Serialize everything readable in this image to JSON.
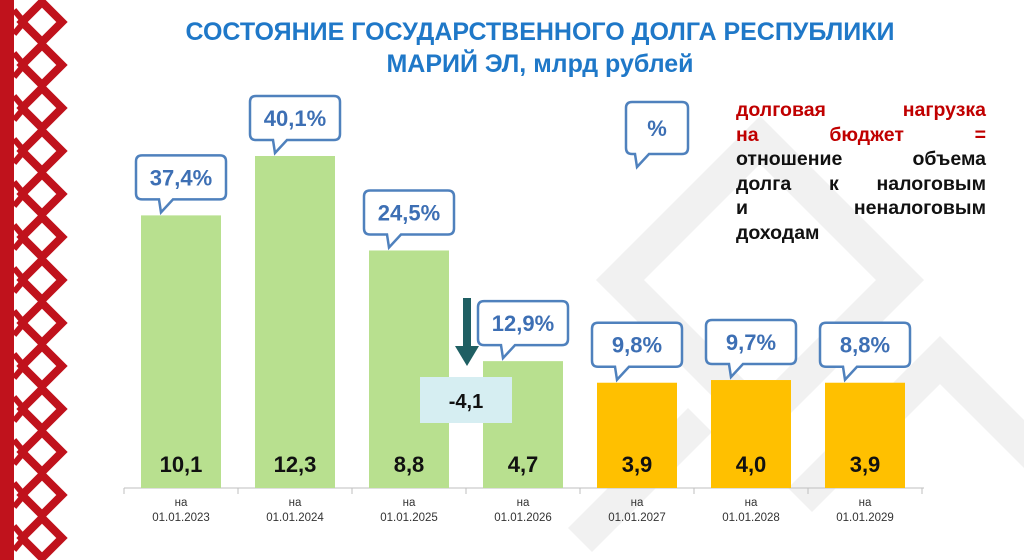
{
  "header": {
    "title_line1": "СОСТОЯНИЕ ГОСУДАРСТВЕННОГО ДОЛГА РЕСПУБЛИКИ",
    "title_line2": "МАРИЙ ЭЛ, млрд рублей"
  },
  "legend": {
    "percent_callout": "%",
    "line1": "долговая нагрузка",
    "line2": "на бюджет =",
    "line3": "отношение объема",
    "line4": "долга к налоговым",
    "line5": "и неналоговым",
    "line6": "доходам"
  },
  "colors": {
    "actual": "#b8e08f",
    "forecast": "#ffc000",
    "title": "#1f78c8",
    "callout_border": "#4f81bd",
    "callout_text": "#3d6fb4",
    "arrow": "#1f5f63",
    "change_box": "#d6eef2",
    "ornament": "#c0121c"
  },
  "chart_data": {
    "type": "bar",
    "categories": [
      "на\n01.01.2023",
      "на\n01.01.2024",
      "на\n01.01.2025",
      "на\n01.01.2026",
      "на\n01.01.2027",
      "на\n01.01.2028",
      "на\n01.01.2029"
    ],
    "values": [
      10.1,
      12.3,
      8.8,
      4.7,
      3.9,
      4.0,
      3.9
    ],
    "value_labels": [
      "10,1",
      "12,3",
      "8,8",
      "4,7",
      "3,9",
      "4,0",
      "3,9"
    ],
    "debt_burden_labels": [
      "37,4%",
      "40,1%",
      "24,5%",
      "12,9%",
      "9,8%",
      "9,7%",
      "8,8%"
    ],
    "forecast": [
      false,
      false,
      false,
      false,
      true,
      true,
      true
    ],
    "change_annotation": "-4,1",
    "ylim": [
      0,
      12.3
    ]
  }
}
